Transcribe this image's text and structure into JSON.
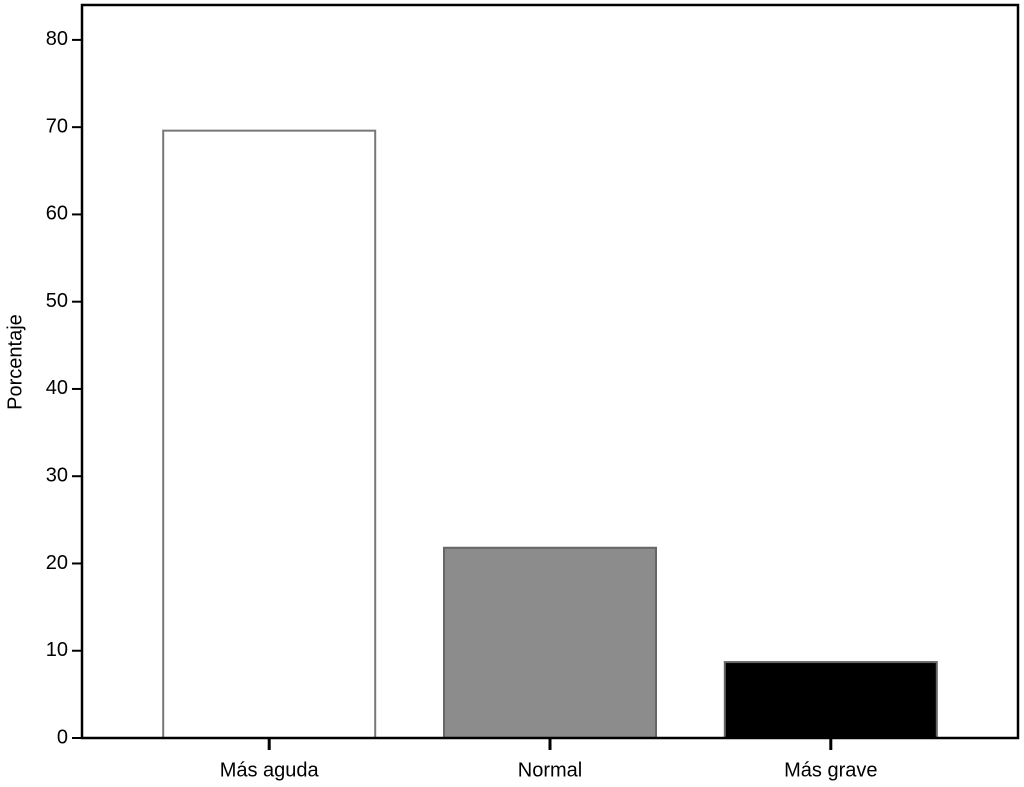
{
  "chart_data": {
    "type": "bar",
    "y_label": "Porcentaje",
    "categories": [
      "Más aguda",
      "Normal",
      "Más grave"
    ],
    "values": [
      69.6,
      21.8,
      8.7
    ],
    "colors": [
      "#ffffff",
      "#8c8c8c",
      "#000000"
    ],
    "ylim": [
      0,
      84
    ],
    "yticks": [
      0,
      10,
      20,
      30,
      40,
      50,
      60,
      70,
      80
    ],
    "grid": false
  }
}
